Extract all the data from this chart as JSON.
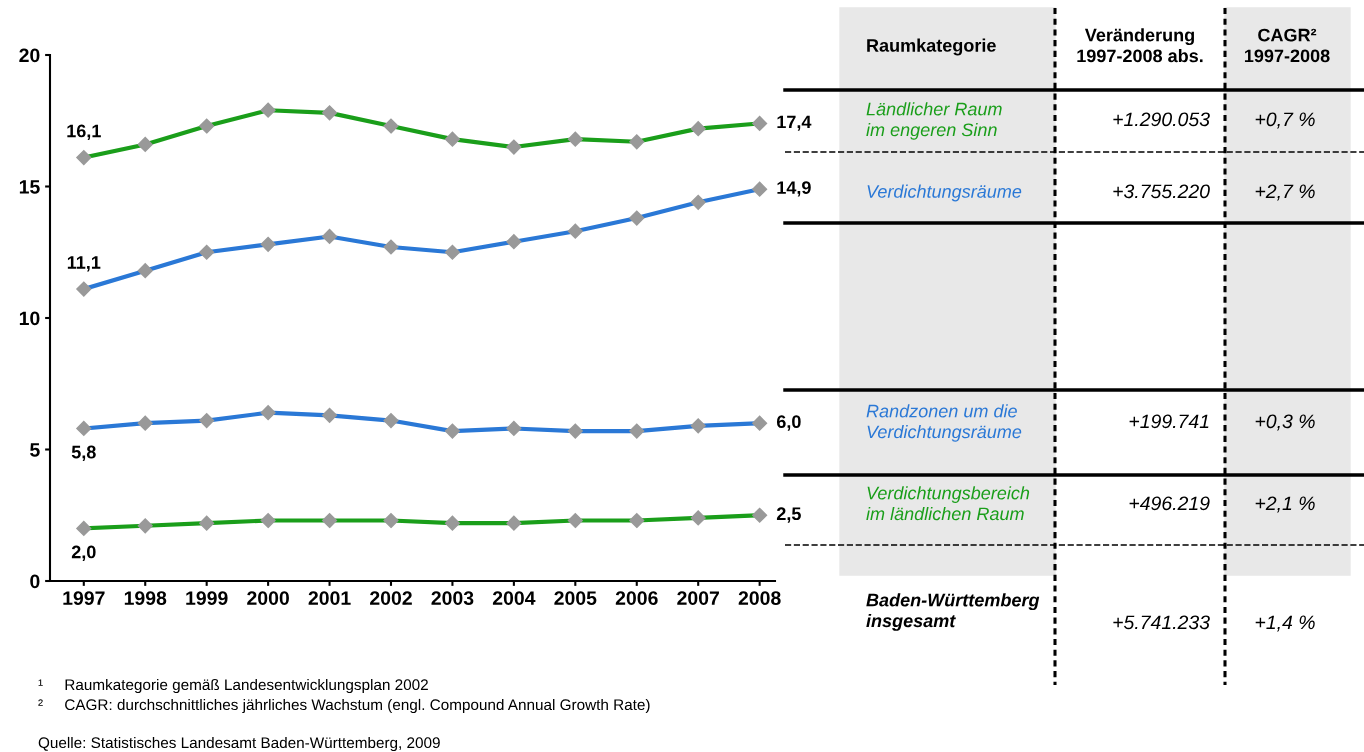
{
  "chart_data": {
    "type": "line",
    "categories": [
      "1997",
      "1998",
      "1999",
      "2000",
      "2001",
      "2002",
      "2003",
      "2004",
      "2005",
      "2006",
      "2007",
      "2008"
    ],
    "series": [
      {
        "name": "Ländlicher Raum\nim engeren Sinn",
        "color": "#1a9e1a",
        "values": [
          16.1,
          16.6,
          17.3,
          17.9,
          17.8,
          17.3,
          16.8,
          16.5,
          16.8,
          16.7,
          17.2,
          17.4
        ],
        "value_labels": [
          "16,1",
          null,
          null,
          null,
          null,
          null,
          null,
          null,
          null,
          null,
          null,
          "17,4"
        ]
      },
      {
        "name": "Verdichtungsräume",
        "color": "#2a78d6",
        "values": [
          11.1,
          11.8,
          12.5,
          12.8,
          13.1,
          12.7,
          12.5,
          12.9,
          13.3,
          13.8,
          14.4,
          14.9
        ],
        "value_labels": [
          "11,1",
          null,
          null,
          null,
          null,
          null,
          null,
          null,
          null,
          null,
          null,
          "14,9"
        ]
      },
      {
        "name": "Randzonen um die\nVerdichtungsräume",
        "color": "#2a78d6",
        "values": [
          5.8,
          6.0,
          6.1,
          6.4,
          6.3,
          6.1,
          5.7,
          5.8,
          5.7,
          5.7,
          5.9,
          6.0
        ],
        "value_labels": [
          "5,8",
          null,
          null,
          null,
          null,
          null,
          null,
          null,
          null,
          null,
          null,
          "6,0"
        ]
      },
      {
        "name": "Verdichtungsbereich\nim ländlichen Raum",
        "color": "#1a9e1a",
        "values": [
          2.0,
          2.1,
          2.2,
          2.3,
          2.3,
          2.3,
          2.2,
          2.2,
          2.3,
          2.3,
          2.4,
          2.5
        ],
        "value_labels": [
          "2,0",
          null,
          null,
          null,
          null,
          null,
          null,
          null,
          null,
          null,
          null,
          "2,5"
        ]
      }
    ],
    "ylim": [
      0,
      20
    ],
    "yticks": [
      0,
      5,
      10,
      15,
      20
    ],
    "marker": "diamond",
    "line_style": "solid",
    "grid": false,
    "legend": false,
    "annotations": [
      "Raumkategorie",
      "Veränderung\n1997-2008 abs.",
      "CAGR²\n1997-2008",
      "+1.290.053",
      "+0,7 %",
      "+3.755.220",
      "+2,7 %",
      "+199.741",
      "+0,3 %",
      "+496.219",
      "+2,1 %",
      "Baden-Württemberg\ninsgesamt",
      "+5.741.233",
      "+1,4 %",
      "¹     Raumkategorie gemäß Landesentwicklungsplan 2002",
      "²     CAGR: durchschnittliches jährliches Wachstum (engl. Compound Annual Growth Rate)",
      "Quelle: Statistisches Landesamt Baden-Württemberg, 2009"
    ]
  }
}
